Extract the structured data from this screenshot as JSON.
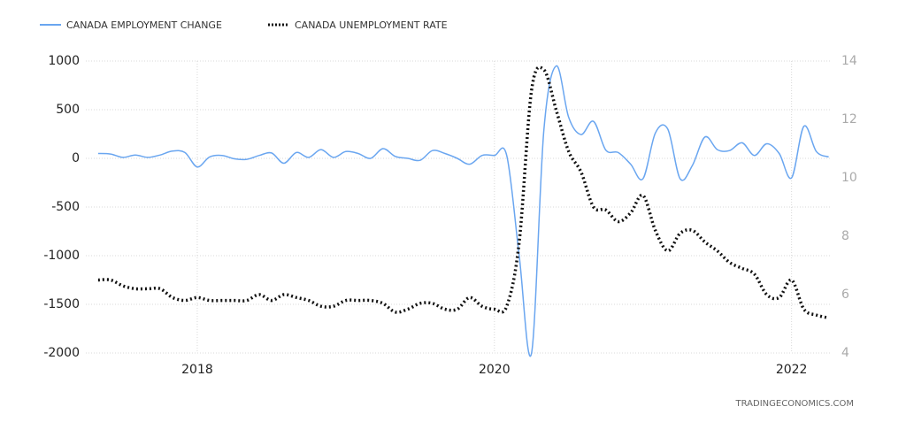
{
  "chart_data": {
    "type": "line",
    "source": "TRADINGECONOMICS.COM",
    "x": [
      2017.333,
      2017.417,
      2017.5,
      2017.583,
      2017.667,
      2017.75,
      2017.833,
      2017.917,
      2018,
      2018.083,
      2018.167,
      2018.25,
      2018.333,
      2018.417,
      2018.5,
      2018.583,
      2018.667,
      2018.75,
      2018.833,
      2018.917,
      2019,
      2019.083,
      2019.167,
      2019.25,
      2019.333,
      2019.417,
      2019.5,
      2019.583,
      2019.667,
      2019.75,
      2019.833,
      2019.917,
      2020,
      2020.083,
      2020.167,
      2020.25,
      2020.333,
      2020.417,
      2020.5,
      2020.583,
      2020.667,
      2020.75,
      2020.833,
      2020.917,
      2021,
      2021.083,
      2021.167,
      2021.25,
      2021.333,
      2021.417,
      2021.5,
      2021.583,
      2021.667,
      2021.75,
      2021.833,
      2021.917,
      2022,
      2022.083,
      2022.167,
      2022.25
    ],
    "series": [
      {
        "name": "CANADA EMPLOYMENT CHANGE",
        "color": "#6aa6f0",
        "style": "solid",
        "values": [
          50,
          45,
          10,
          35,
          10,
          35,
          75,
          60,
          -88,
          15,
          30,
          -5,
          -10,
          30,
          55,
          -50,
          60,
          10,
          90,
          10,
          70,
          50,
          0,
          100,
          20,
          0,
          -20,
          80,
          50,
          0,
          -60,
          30,
          30,
          30,
          -1000,
          -2000,
          290,
          950,
          420,
          245,
          380,
          85,
          60,
          -60,
          -210,
          260,
          300,
          -210,
          -70,
          220,
          90,
          80,
          160,
          30,
          150,
          50,
          -200,
          330,
          70,
          15
        ]
      },
      {
        "name": "CANADA UNEMPLOYMENT RATE",
        "color": "#111111",
        "style": "dotted",
        "axis": "y2",
        "values": [
          6.5,
          6.5,
          6.3,
          6.2,
          6.2,
          6.2,
          5.9,
          5.8,
          5.9,
          5.8,
          5.8,
          5.8,
          5.8,
          6.0,
          5.8,
          6.0,
          5.9,
          5.8,
          5.6,
          5.6,
          5.8,
          5.8,
          5.8,
          5.7,
          5.4,
          5.5,
          5.7,
          5.7,
          5.5,
          5.5,
          5.9,
          5.6,
          5.5,
          5.6,
          7.8,
          13.0,
          13.7,
          12.3,
          10.9,
          10.2,
          9.0,
          8.9,
          8.5,
          8.8,
          9.4,
          8.2,
          7.5,
          8.1,
          8.2,
          7.8,
          7.5,
          7.1,
          6.9,
          6.7,
          6.0,
          5.9,
          6.5,
          5.5,
          5.3,
          5.2
        ]
      }
    ],
    "xlim": [
      2017.25,
      2022.27
    ],
    "xticks": [
      2018,
      2020,
      2022
    ],
    "ylim": [
      -2000,
      1000
    ],
    "yticks": [
      1000,
      500,
      0,
      -500,
      -1000,
      -1500,
      -2000
    ],
    "y2lim": [
      4,
      14
    ],
    "y2ticks": [
      14,
      12,
      10,
      8,
      6,
      4
    ],
    "grid": true
  }
}
